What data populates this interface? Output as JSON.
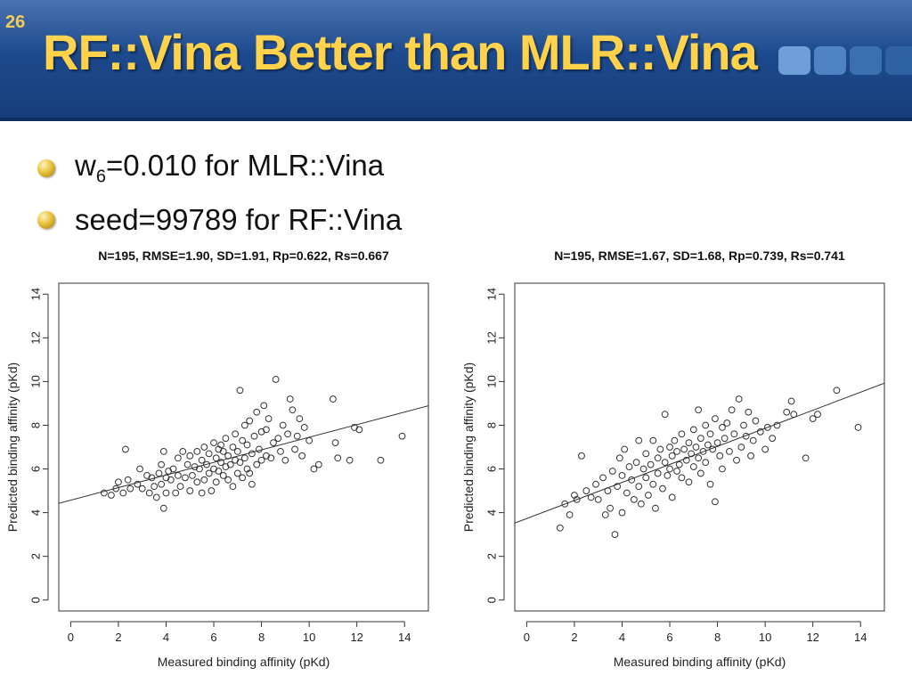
{
  "slide": {
    "number": "26",
    "title": "RF::Vina Better than MLR::Vina"
  },
  "bullets": [
    {
      "pre": "w",
      "sub": "6",
      "post": "=0.010 for MLR::Vina"
    },
    {
      "pre": "seed=99789 for RF::Vina",
      "sub": "",
      "post": ""
    }
  ],
  "colors": {
    "header": "#1d4a8e",
    "title": "#ffd24a",
    "bullet": "#e8c23a"
  },
  "chart_data": [
    {
      "type": "scatter",
      "title": "N=195, RMSE=1.90, SD=1.91, Rp=0.622, Rs=0.667",
      "xlabel": "Measured binding affinity (pKd)",
      "ylabel": "Predicted binding affinity (pKd)",
      "xlim": [
        -0.5,
        15.0
      ],
      "ylim": [
        -0.5,
        14.5
      ],
      "xticks": [
        0,
        2,
        4,
        6,
        8,
        10,
        12,
        14
      ],
      "yticks": [
        0,
        2,
        4,
        6,
        8,
        10,
        12,
        14
      ],
      "grid": false,
      "marker": "open-circle",
      "fit_line": {
        "slope": 0.288,
        "intercept": 4.57
      },
      "points": [
        [
          1.4,
          4.9
        ],
        [
          1.7,
          4.8
        ],
        [
          1.9,
          5.1
        ],
        [
          2.0,
          5.4
        ],
        [
          2.2,
          4.9
        ],
        [
          2.3,
          6.9
        ],
        [
          2.4,
          5.5
        ],
        [
          2.5,
          5.1
        ],
        [
          2.8,
          5.3
        ],
        [
          2.9,
          6.0
        ],
        [
          3.0,
          5.1
        ],
        [
          3.2,
          5.7
        ],
        [
          3.3,
          4.9
        ],
        [
          3.4,
          5.6
        ],
        [
          3.5,
          5.2
        ],
        [
          3.6,
          4.7
        ],
        [
          3.7,
          5.8
        ],
        [
          3.8,
          6.2
        ],
        [
          3.8,
          5.3
        ],
        [
          3.9,
          4.2
        ],
        [
          3.9,
          6.8
        ],
        [
          4.0,
          5.6
        ],
        [
          4.0,
          4.9
        ],
        [
          4.1,
          5.9
        ],
        [
          4.2,
          5.5
        ],
        [
          4.3,
          6.0
        ],
        [
          4.4,
          4.9
        ],
        [
          4.5,
          6.5
        ],
        [
          4.5,
          5.7
        ],
        [
          4.6,
          5.2
        ],
        [
          4.7,
          6.8
        ],
        [
          4.8,
          5.6
        ],
        [
          4.9,
          6.2
        ],
        [
          5.0,
          5.0
        ],
        [
          5.0,
          6.6
        ],
        [
          5.1,
          5.7
        ],
        [
          5.2,
          6.1
        ],
        [
          5.3,
          6.8
        ],
        [
          5.3,
          5.4
        ],
        [
          5.4,
          6.0
        ],
        [
          5.5,
          4.9
        ],
        [
          5.5,
          6.4
        ],
        [
          5.6,
          7.0
        ],
        [
          5.6,
          5.5
        ],
        [
          5.7,
          6.2
        ],
        [
          5.8,
          5.8
        ],
        [
          5.8,
          6.7
        ],
        [
          5.9,
          5.0
        ],
        [
          6.0,
          7.2
        ],
        [
          6.0,
          6.0
        ],
        [
          6.1,
          5.4
        ],
        [
          6.1,
          6.5
        ],
        [
          6.2,
          6.9
        ],
        [
          6.2,
          5.9
        ],
        [
          6.3,
          7.1
        ],
        [
          6.3,
          6.3
        ],
        [
          6.4,
          5.7
        ],
        [
          6.4,
          6.8
        ],
        [
          6.5,
          6.1
        ],
        [
          6.5,
          7.4
        ],
        [
          6.6,
          5.5
        ],
        [
          6.6,
          6.6
        ],
        [
          6.7,
          6.2
        ],
        [
          6.8,
          7.0
        ],
        [
          6.8,
          5.2
        ],
        [
          6.9,
          6.4
        ],
        [
          6.9,
          7.6
        ],
        [
          7.0,
          5.8
        ],
        [
          7.0,
          6.8
        ],
        [
          7.1,
          9.6
        ],
        [
          7.1,
          6.3
        ],
        [
          7.2,
          5.6
        ],
        [
          7.2,
          7.3
        ],
        [
          7.3,
          6.5
        ],
        [
          7.3,
          8.0
        ],
        [
          7.4,
          6.0
        ],
        [
          7.4,
          7.1
        ],
        [
          7.5,
          5.8
        ],
        [
          7.5,
          8.2
        ],
        [
          7.6,
          6.7
        ],
        [
          7.6,
          5.3
        ],
        [
          7.7,
          7.5
        ],
        [
          7.8,
          6.2
        ],
        [
          7.8,
          8.6
        ],
        [
          7.9,
          6.9
        ],
        [
          8.0,
          7.7
        ],
        [
          8.0,
          6.4
        ],
        [
          8.1,
          8.9
        ],
        [
          8.2,
          6.6
        ],
        [
          8.2,
          7.8
        ],
        [
          8.3,
          8.3
        ],
        [
          8.4,
          6.5
        ],
        [
          8.5,
          7.2
        ],
        [
          8.6,
          10.1
        ],
        [
          8.7,
          7.4
        ],
        [
          8.8,
          6.8
        ],
        [
          8.9,
          8.0
        ],
        [
          9.0,
          6.4
        ],
        [
          9.1,
          7.6
        ],
        [
          9.2,
          9.2
        ],
        [
          9.3,
          8.7
        ],
        [
          9.4,
          6.9
        ],
        [
          9.5,
          7.5
        ],
        [
          9.6,
          8.3
        ],
        [
          9.7,
          6.6
        ],
        [
          9.8,
          7.9
        ],
        [
          10.0,
          7.3
        ],
        [
          10.2,
          6.0
        ],
        [
          10.4,
          6.2
        ],
        [
          11.0,
          9.2
        ],
        [
          11.1,
          7.2
        ],
        [
          11.2,
          6.5
        ],
        [
          11.7,
          6.4
        ],
        [
          11.9,
          7.9
        ],
        [
          12.1,
          7.8
        ],
        [
          13.0,
          6.4
        ],
        [
          13.9,
          7.5
        ]
      ]
    },
    {
      "type": "scatter",
      "title": "N=195, RMSE=1.67, SD=1.68, Rp=0.739, Rs=0.741",
      "xlabel": "Measured binding affinity (pKd)",
      "ylabel": "Predicted binding affinity (pKd)",
      "xlim": [
        -0.5,
        15.0
      ],
      "ylim": [
        -0.5,
        14.5
      ],
      "xticks": [
        0,
        2,
        4,
        6,
        8,
        10,
        12,
        14
      ],
      "yticks": [
        0,
        2,
        4,
        6,
        8,
        10,
        12,
        14
      ],
      "grid": false,
      "marker": "open-circle",
      "fit_line": {
        "slope": 0.413,
        "intercept": 3.73
      },
      "points": [
        [
          1.4,
          3.3
        ],
        [
          1.6,
          4.4
        ],
        [
          1.8,
          3.9
        ],
        [
          2.0,
          4.8
        ],
        [
          2.1,
          4.6
        ],
        [
          2.3,
          6.6
        ],
        [
          2.5,
          5.0
        ],
        [
          2.7,
          4.7
        ],
        [
          2.9,
          5.3
        ],
        [
          3.0,
          4.6
        ],
        [
          3.2,
          5.6
        ],
        [
          3.3,
          3.9
        ],
        [
          3.4,
          5.0
        ],
        [
          3.5,
          4.2
        ],
        [
          3.6,
          5.9
        ],
        [
          3.7,
          3.0
        ],
        [
          3.8,
          5.2
        ],
        [
          3.9,
          6.5
        ],
        [
          4.0,
          4.0
        ],
        [
          4.0,
          5.7
        ],
        [
          4.1,
          6.9
        ],
        [
          4.2,
          4.9
        ],
        [
          4.3,
          6.1
        ],
        [
          4.4,
          5.5
        ],
        [
          4.5,
          4.6
        ],
        [
          4.6,
          6.3
        ],
        [
          4.7,
          7.3
        ],
        [
          4.7,
          5.2
        ],
        [
          4.8,
          4.4
        ],
        [
          4.9,
          6.0
        ],
        [
          5.0,
          5.6
        ],
        [
          5.0,
          6.7
        ],
        [
          5.1,
          4.8
        ],
        [
          5.2,
          6.2
        ],
        [
          5.3,
          5.3
        ],
        [
          5.3,
          7.3
        ],
        [
          5.4,
          4.2
        ],
        [
          5.5,
          6.5
        ],
        [
          5.5,
          5.8
        ],
        [
          5.6,
          6.9
        ],
        [
          5.7,
          5.1
        ],
        [
          5.8,
          6.3
        ],
        [
          5.8,
          8.5
        ],
        [
          5.9,
          5.7
        ],
        [
          6.0,
          7.0
        ],
        [
          6.0,
          6.0
        ],
        [
          6.1,
          4.7
        ],
        [
          6.1,
          6.6
        ],
        [
          6.2,
          7.3
        ],
        [
          6.3,
          5.9
        ],
        [
          6.3,
          6.8
        ],
        [
          6.4,
          6.2
        ],
        [
          6.5,
          7.6
        ],
        [
          6.5,
          5.6
        ],
        [
          6.6,
          6.9
        ],
        [
          6.7,
          6.4
        ],
        [
          6.8,
          7.2
        ],
        [
          6.8,
          5.4
        ],
        [
          6.9,
          6.7
        ],
        [
          7.0,
          7.8
        ],
        [
          7.0,
          6.1
        ],
        [
          7.1,
          7.0
        ],
        [
          7.2,
          8.7
        ],
        [
          7.2,
          6.5
        ],
        [
          7.3,
          5.8
        ],
        [
          7.3,
          7.4
        ],
        [
          7.4,
          6.8
        ],
        [
          7.5,
          8.0
        ],
        [
          7.5,
          6.3
        ],
        [
          7.6,
          7.1
        ],
        [
          7.7,
          7.6
        ],
        [
          7.7,
          5.3
        ],
        [
          7.8,
          6.9
        ],
        [
          7.9,
          8.3
        ],
        [
          7.9,
          4.5
        ],
        [
          8.0,
          7.2
        ],
        [
          8.1,
          6.6
        ],
        [
          8.2,
          7.9
        ],
        [
          8.2,
          6.0
        ],
        [
          8.3,
          7.4
        ],
        [
          8.4,
          8.1
        ],
        [
          8.5,
          6.8
        ],
        [
          8.6,
          8.7
        ],
        [
          8.7,
          7.6
        ],
        [
          8.8,
          6.4
        ],
        [
          8.9,
          9.2
        ],
        [
          9.0,
          7.0
        ],
        [
          9.1,
          8.0
        ],
        [
          9.2,
          7.5
        ],
        [
          9.3,
          8.6
        ],
        [
          9.4,
          6.6
        ],
        [
          9.5,
          7.3
        ],
        [
          9.6,
          8.2
        ],
        [
          9.8,
          7.7
        ],
        [
          10.0,
          6.9
        ],
        [
          10.1,
          7.9
        ],
        [
          10.3,
          7.4
        ],
        [
          10.5,
          8.0
        ],
        [
          10.9,
          8.6
        ],
        [
          11.1,
          9.1
        ],
        [
          11.2,
          8.5
        ],
        [
          11.7,
          6.5
        ],
        [
          12.0,
          8.3
        ],
        [
          12.2,
          8.5
        ],
        [
          13.0,
          9.6
        ],
        [
          13.9,
          7.9
        ]
      ]
    }
  ]
}
